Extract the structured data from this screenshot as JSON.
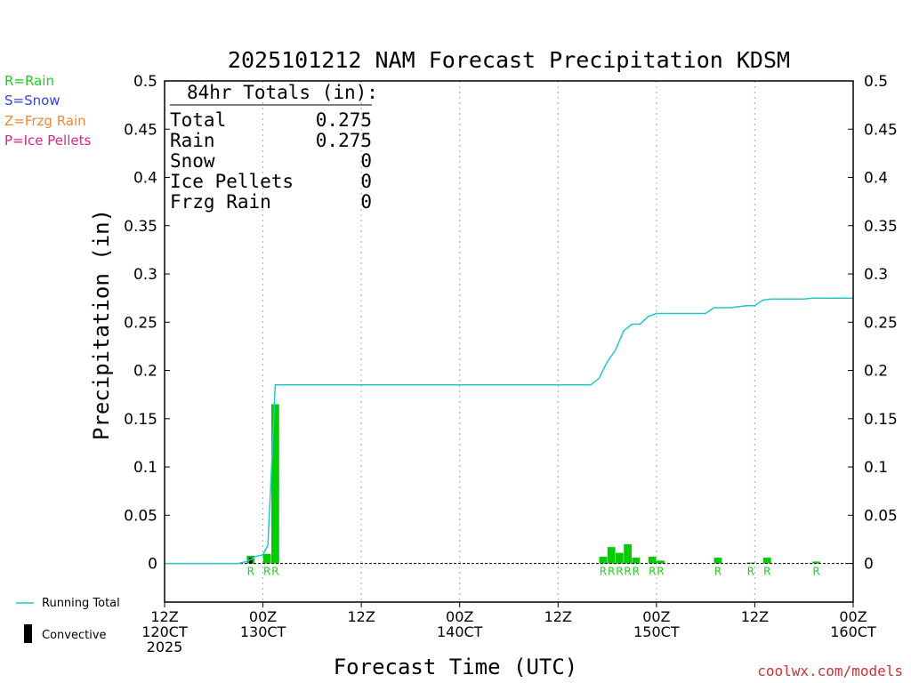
{
  "title": "2025101212 NAM Forecast Precipitation KDSM",
  "xlabel": "Forecast Time (UTC)",
  "ylabel": "Precipitation (in)",
  "credit": "coolwx.com/models",
  "type_legend": [
    {
      "label": "R=Rain",
      "color": "#22cc22"
    },
    {
      "label": "S=Snow",
      "color": "#3344dd"
    },
    {
      "label": "Z=Frzg Rain",
      "color": "#ee8833"
    },
    {
      "label": "P=Ice Pellets",
      "color": "#dd2288"
    }
  ],
  "series_legend": {
    "running_total": "Running Total",
    "convective": "Convective"
  },
  "totals_box": {
    "heading": "84hr Totals (in):",
    "rows": [
      {
        "label": "Total",
        "value": "0.275"
      },
      {
        "label": "Rain",
        "value": "0.275"
      },
      {
        "label": "Snow",
        "value": "0"
      },
      {
        "label": "Ice Pellets",
        "value": "0"
      },
      {
        "label": "Frzg Rain",
        "value": "0"
      }
    ]
  },
  "colors": {
    "bar": "#00cc00",
    "convective": "#000000",
    "running_total": "#22c7c7",
    "rain_label": "#22cc22"
  },
  "chart_data": {
    "type": "bar",
    "ylim": [
      -0.04,
      0.5
    ],
    "y_ticks": [
      "0",
      "0.05",
      "0.1",
      "0.15",
      "0.2",
      "0.25",
      "0.3",
      "0.35",
      "0.4",
      "0.45",
      "0.5"
    ],
    "x_range_hours": [
      0,
      84
    ],
    "x_ticks": [
      {
        "hour": 0,
        "lines": [
          "12Z",
          "120CT",
          "2025"
        ]
      },
      {
        "hour": 12,
        "lines": [
          "00Z",
          "130CT"
        ]
      },
      {
        "hour": 24,
        "lines": [
          "12Z"
        ]
      },
      {
        "hour": 36,
        "lines": [
          "00Z",
          "140CT"
        ]
      },
      {
        "hour": 48,
        "lines": [
          "12Z"
        ]
      },
      {
        "hour": 60,
        "lines": [
          "00Z",
          "150CT"
        ]
      },
      {
        "hour": 72,
        "lines": [
          "12Z"
        ]
      },
      {
        "hour": 84,
        "lines": [
          "00Z",
          "160CT"
        ]
      }
    ],
    "bars": [
      {
        "hour": 10.5,
        "value": 0.008,
        "convective": 0.006,
        "type": "R"
      },
      {
        "hour": 12.5,
        "value": 0.01,
        "type": "R"
      },
      {
        "hour": 13.5,
        "value": 0.165,
        "type": "R"
      },
      {
        "hour": 53.5,
        "value": 0.007,
        "type": "R"
      },
      {
        "hour": 54.5,
        "value": 0.017,
        "type": "R"
      },
      {
        "hour": 55.5,
        "value": 0.011,
        "type": "R"
      },
      {
        "hour": 56.5,
        "value": 0.02,
        "type": "R"
      },
      {
        "hour": 57.5,
        "value": 0.006,
        "type": "R"
      },
      {
        "hour": 59.5,
        "value": 0.007,
        "type": "R"
      },
      {
        "hour": 60.5,
        "value": 0.003,
        "type": "R"
      },
      {
        "hour": 67.5,
        "value": 0.006,
        "type": "R"
      },
      {
        "hour": 71.5,
        "value": 0.001,
        "type": "R"
      },
      {
        "hour": 73.5,
        "value": 0.006,
        "type": "R"
      },
      {
        "hour": 79.5,
        "value": 0.002,
        "type": "R"
      }
    ],
    "running_total": {
      "hours": [
        0,
        9,
        10,
        10.5,
        11,
        11.5,
        12,
        12.6,
        13,
        13.5,
        14,
        52,
        53,
        54,
        55,
        56,
        57,
        58,
        59,
        60,
        61,
        62,
        63,
        66,
        67,
        68,
        69,
        70,
        71,
        72,
        73,
        74,
        75,
        76,
        77,
        78,
        79,
        84
      ],
      "values": [
        0,
        0,
        0.002,
        0.004,
        0.007,
        0.008,
        0.009,
        0.019,
        0.09,
        0.185,
        0.185,
        0.185,
        0.192,
        0.209,
        0.221,
        0.241,
        0.248,
        0.248,
        0.256,
        0.259,
        0.259,
        0.259,
        0.259,
        0.259,
        0.265,
        0.265,
        0.265,
        0.266,
        0.267,
        0.267,
        0.273,
        0.274,
        0.274,
        0.274,
        0.274,
        0.274,
        0.275,
        0.275
      ]
    }
  }
}
